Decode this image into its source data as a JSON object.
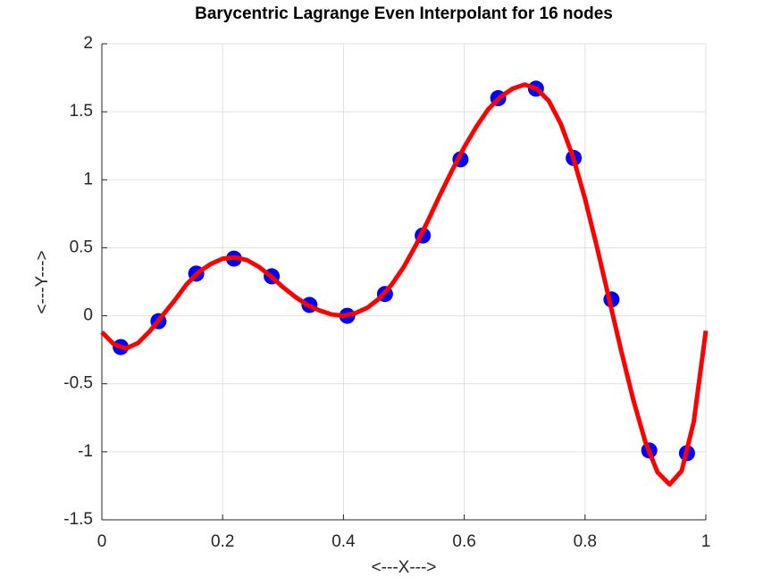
{
  "chart_data": {
    "type": "line",
    "title": "Barycentric Lagrange Even Interpolant for 16 nodes",
    "xlabel": "<---X--->",
    "ylabel": "<---Y--->",
    "xlim": [
      0,
      1
    ],
    "xticks": [
      0,
      0.2,
      0.4,
      0.6,
      0.8,
      1
    ],
    "ylim": [
      -1.5,
      2
    ],
    "yticks": [
      -1.5,
      -1,
      -0.5,
      0,
      0.5,
      1,
      1.5,
      2
    ],
    "grid": true,
    "series": [
      {
        "style": "marker",
        "color": "#0000ff",
        "x": [
          0.03125,
          0.09375,
          0.15625,
          0.21875,
          0.28125,
          0.34375,
          0.40625,
          0.46875,
          0.53125,
          0.59375,
          0.65625,
          0.71875,
          0.78125,
          0.84375,
          0.90625,
          0.96875
        ],
        "values": [
          -0.23,
          -0.04,
          0.31,
          0.42,
          0.29,
          0.08,
          0.0,
          0.16,
          0.59,
          1.15,
          1.6,
          1.67,
          1.16,
          0.12,
          -0.99,
          -1.01
        ]
      },
      {
        "style": "line",
        "color": "#ff0000",
        "x": [
          0,
          0.02,
          0.04,
          0.06,
          0.08,
          0.1,
          0.12,
          0.14,
          0.16,
          0.18,
          0.2,
          0.22,
          0.24,
          0.26,
          0.28,
          0.3,
          0.32,
          0.34,
          0.36,
          0.38,
          0.4,
          0.42,
          0.44,
          0.46,
          0.48,
          0.5,
          0.52,
          0.54,
          0.56,
          0.58,
          0.6,
          0.62,
          0.64,
          0.66,
          0.68,
          0.7,
          0.72,
          0.74,
          0.76,
          0.78,
          0.8,
          0.82,
          0.84,
          0.86,
          0.88,
          0.9,
          0.92,
          0.94,
          0.96,
          0.98,
          1
        ],
        "values": [
          -0.12,
          -0.21,
          -0.24,
          -0.2,
          -0.11,
          0.0,
          0.11,
          0.23,
          0.32,
          0.38,
          0.42,
          0.43,
          0.41,
          0.36,
          0.29,
          0.21,
          0.14,
          0.08,
          0.04,
          0.01,
          0.0,
          0.02,
          0.06,
          0.13,
          0.23,
          0.36,
          0.52,
          0.7,
          0.89,
          1.07,
          1.24,
          1.39,
          1.52,
          1.61,
          1.67,
          1.7,
          1.67,
          1.58,
          1.41,
          1.17,
          0.86,
          0.5,
          0.12,
          -0.26,
          -0.62,
          -0.93,
          -1.15,
          -1.24,
          -1.14,
          -0.78,
          -0.11
        ]
      }
    ]
  }
}
